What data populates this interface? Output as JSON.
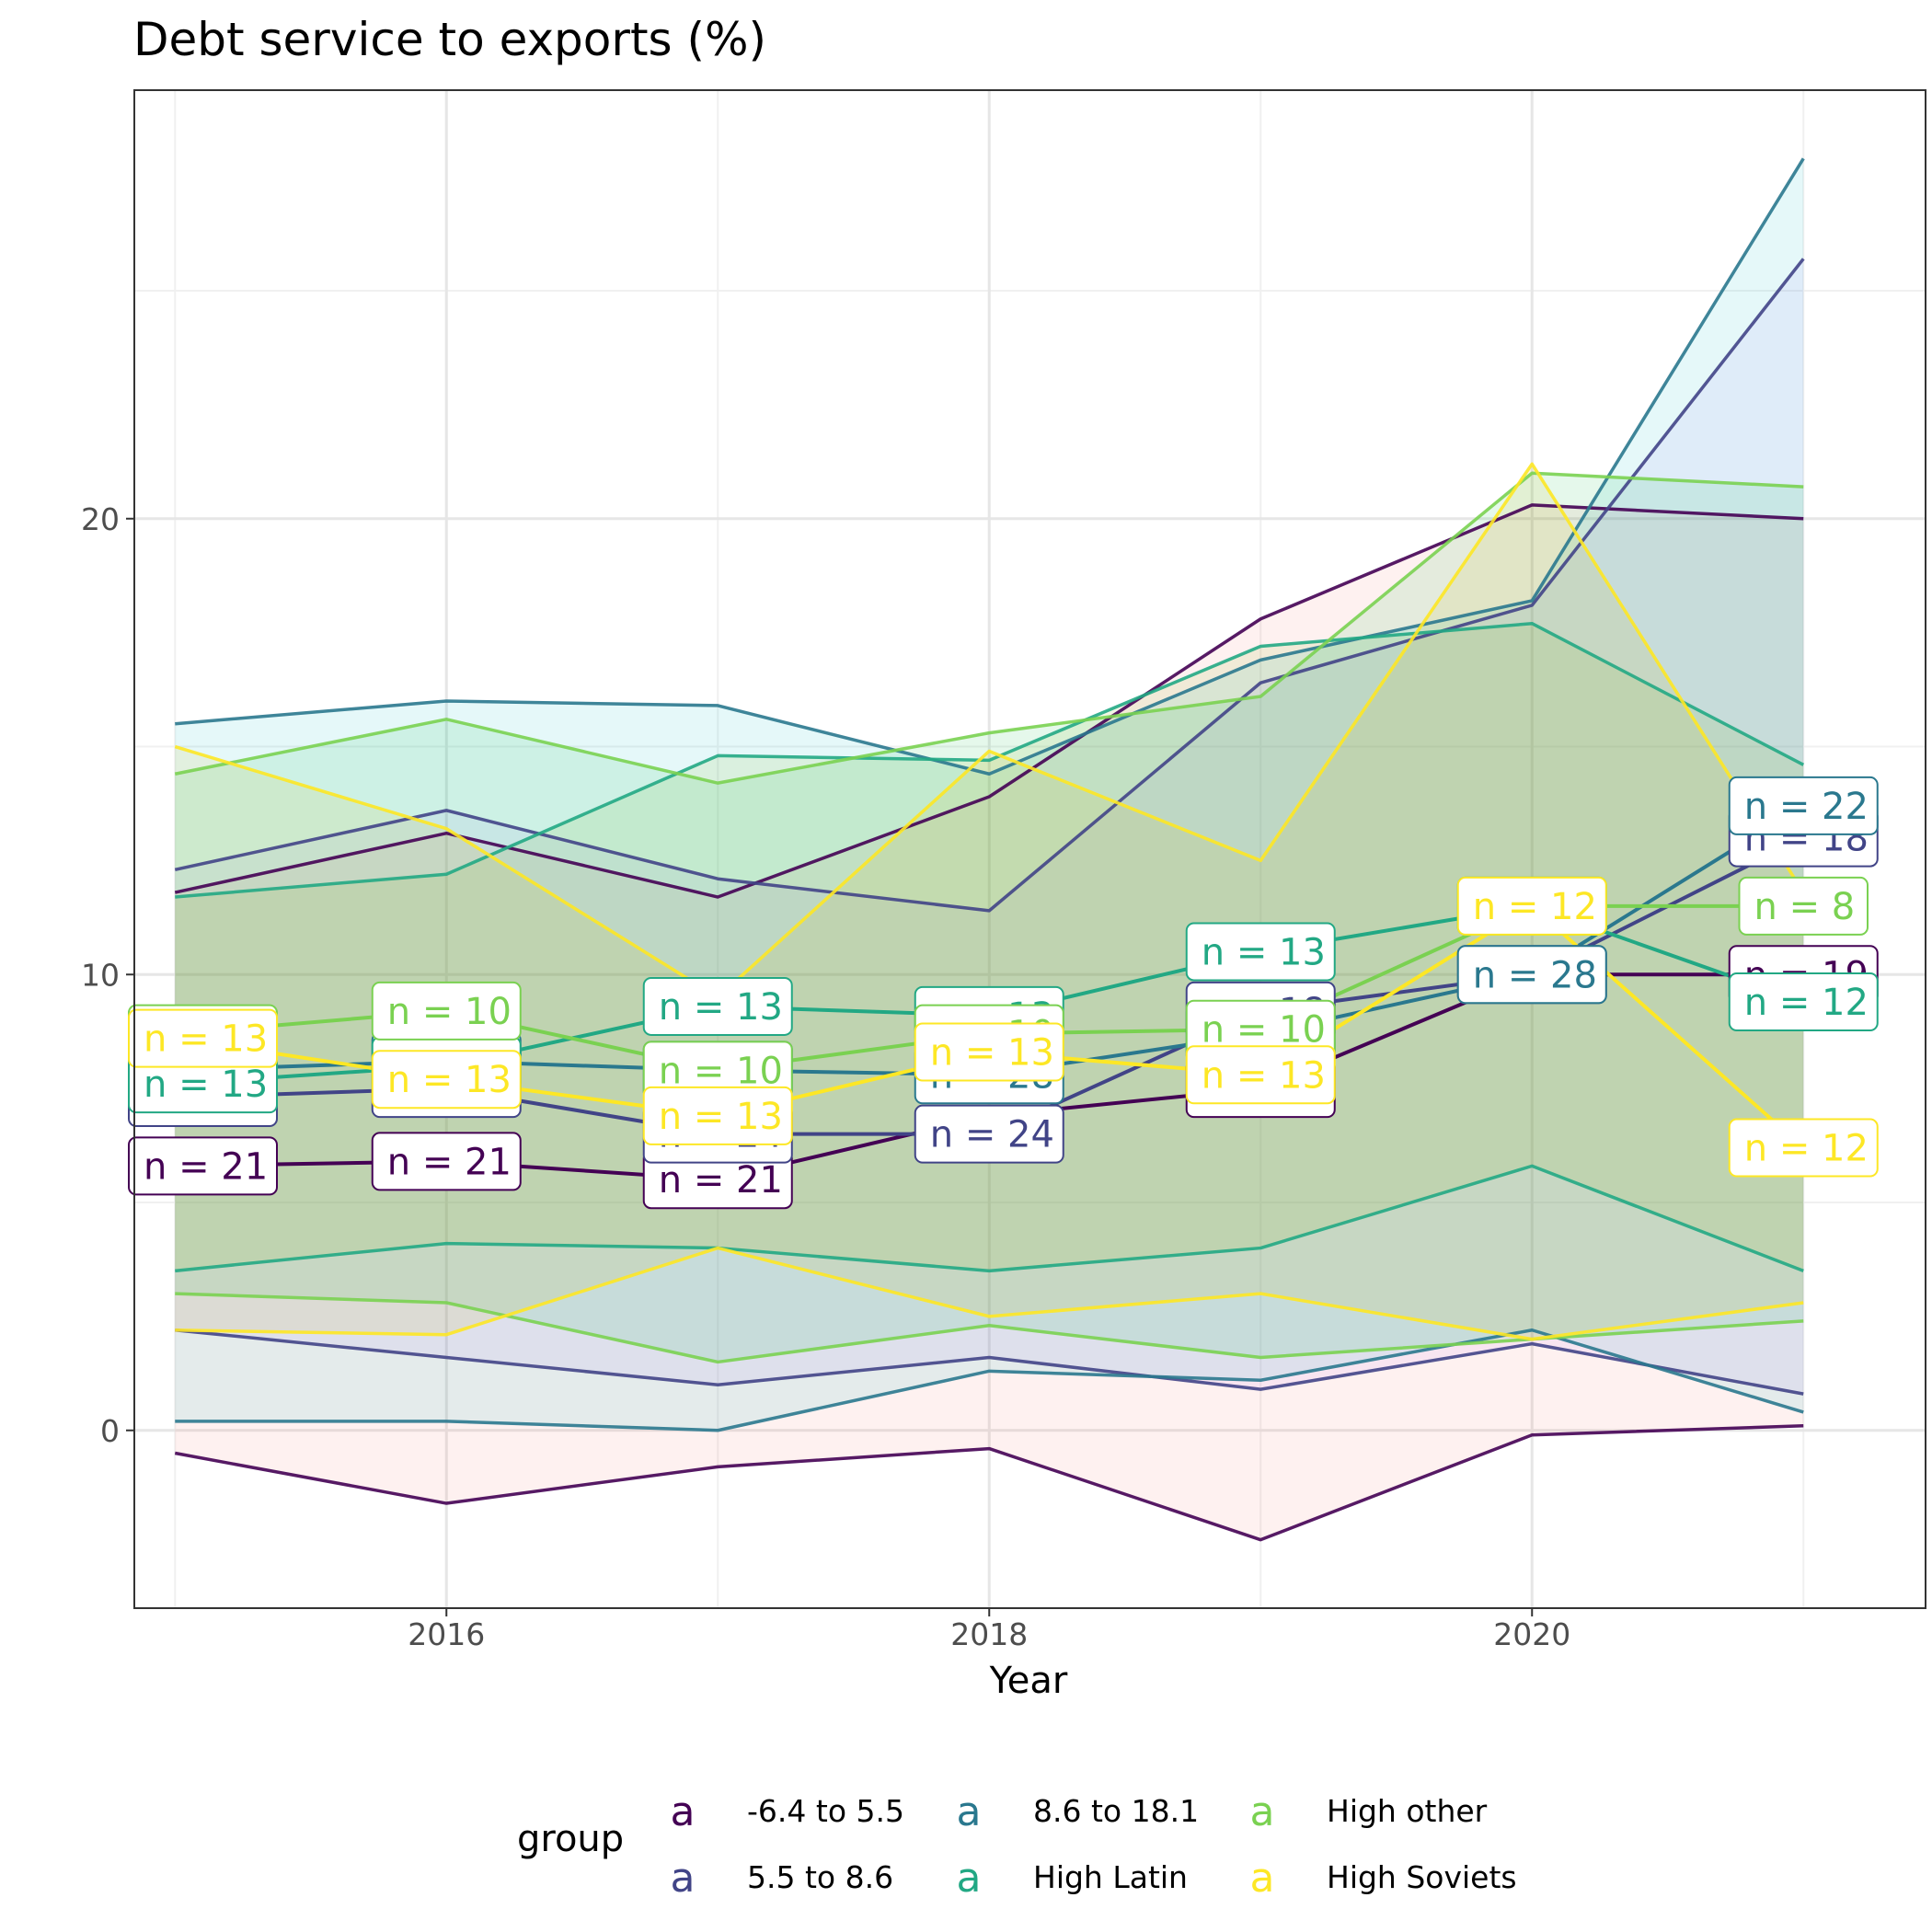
{
  "chart_data": {
    "type": "area",
    "title": "Debt service to exports (%)",
    "xlabel": "Year",
    "ylabel": "",
    "xlim": [
      2014.85,
      2021.45
    ],
    "ylim": [
      -3.9,
      29.4
    ],
    "x_ticks": [
      2016,
      2018,
      2020
    ],
    "y_ticks": [
      0,
      10,
      20
    ],
    "x_tick_labels": [
      "2016",
      "2018",
      "2020"
    ],
    "y_tick_labels": [
      "0",
      "10",
      "20"
    ],
    "x": [
      2015,
      2016,
      2017,
      2018,
      2019,
      2020,
      2021
    ],
    "legend": {
      "title": "group",
      "glyph": "a",
      "position": "bottom"
    },
    "series": [
      {
        "name": "-6.4 to 5.5",
        "color": "#440154",
        "mean": [
          5.8,
          5.9,
          5.5,
          6.9,
          7.5,
          10.0,
          10.0
        ],
        "upper": [
          11.8,
          13.1,
          11.7,
          13.9,
          17.8,
          20.3,
          20.0
        ],
        "lower": [
          -0.5,
          -1.6,
          -0.8,
          -0.4,
          -2.4,
          -0.1,
          0.1
        ],
        "label": "n = 21",
        "labels": [
          "n = 21",
          "n = 21",
          "n = 21",
          "",
          "n = 19",
          "",
          "n = 19"
        ]
      },
      {
        "name": "5.5 to 8.6",
        "color": "#414487",
        "mean": [
          7.3,
          7.5,
          6.5,
          6.5,
          9.2,
          10.0,
          13.0
        ],
        "upper": [
          12.3,
          13.6,
          12.1,
          11.4,
          16.4,
          18.1,
          25.7
        ],
        "lower": [
          2.2,
          1.6,
          1.0,
          1.6,
          0.9,
          1.9,
          0.8
        ],
        "label": "n = 24",
        "labels": [
          "n = 24",
          "n = 24",
          "n = 24",
          "n = 24",
          "n = 18",
          "n = 18",
          "n = 18"
        ]
      },
      {
        "name": "8.6 to 18.1",
        "color": "#2A788E",
        "mean": [
          7.9,
          8.1,
          7.9,
          7.8,
          8.7,
          10.0,
          13.7
        ],
        "upper": [
          15.5,
          16.0,
          15.9,
          14.4,
          16.9,
          18.2,
          27.9
        ],
        "lower": [
          0.2,
          0.2,
          0.0,
          1.3,
          1.1,
          2.2,
          0.4
        ],
        "label": "n = 28",
        "labels": [
          "n = 28",
          "n = 12",
          "n = 28",
          "n = 28",
          "n = 22",
          "n = 28",
          "n = 22"
        ]
      },
      {
        "name": "High Latin",
        "color": "#22A884",
        "mean": [
          7.6,
          8.0,
          9.3,
          9.1,
          10.5,
          11.5,
          9.4
        ],
        "upper": [
          11.7,
          12.2,
          14.8,
          14.7,
          17.2,
          17.7,
          14.6
        ],
        "lower": [
          3.5,
          4.1,
          4.0,
          3.5,
          4.0,
          5.8,
          3.5
        ],
        "label": "n = 13",
        "labels": [
          "n = 13",
          "n = 13",
          "n = 13",
          "n = 13",
          "n = 13",
          "n = 12",
          "n = 12"
        ]
      },
      {
        "name": "High other",
        "color": "#7AD151",
        "mean": [
          8.7,
          9.2,
          7.9,
          8.7,
          8.8,
          11.5,
          11.5
        ],
        "upper": [
          14.4,
          15.6,
          14.2,
          15.3,
          16.1,
          21.0,
          20.7
        ],
        "lower": [
          3.0,
          2.8,
          1.5,
          2.3,
          1.6,
          2.0,
          2.4
        ],
        "label": "n = 10",
        "labels": [
          "n = 10",
          "n = 10",
          "n = 10",
          "n = 10",
          "n = 10",
          "n = 10",
          "n = 8"
        ]
      },
      {
        "name": "High Soviets",
        "color": "#FDE725",
        "mean": [
          8.6,
          7.7,
          6.9,
          8.3,
          7.8,
          11.5,
          6.2
        ],
        "upper": [
          15.0,
          13.2,
          9.5,
          14.9,
          12.5,
          21.2,
          11.8
        ],
        "lower": [
          2.2,
          2.1,
          4.0,
          2.5,
          3.0,
          2.0,
          2.8
        ],
        "label": "n = 13",
        "labels": [
          "n = 13",
          "n = 13",
          "n = 13",
          "n = 13",
          "n = 13",
          "n = 12",
          "n = 12"
        ]
      }
    ]
  }
}
